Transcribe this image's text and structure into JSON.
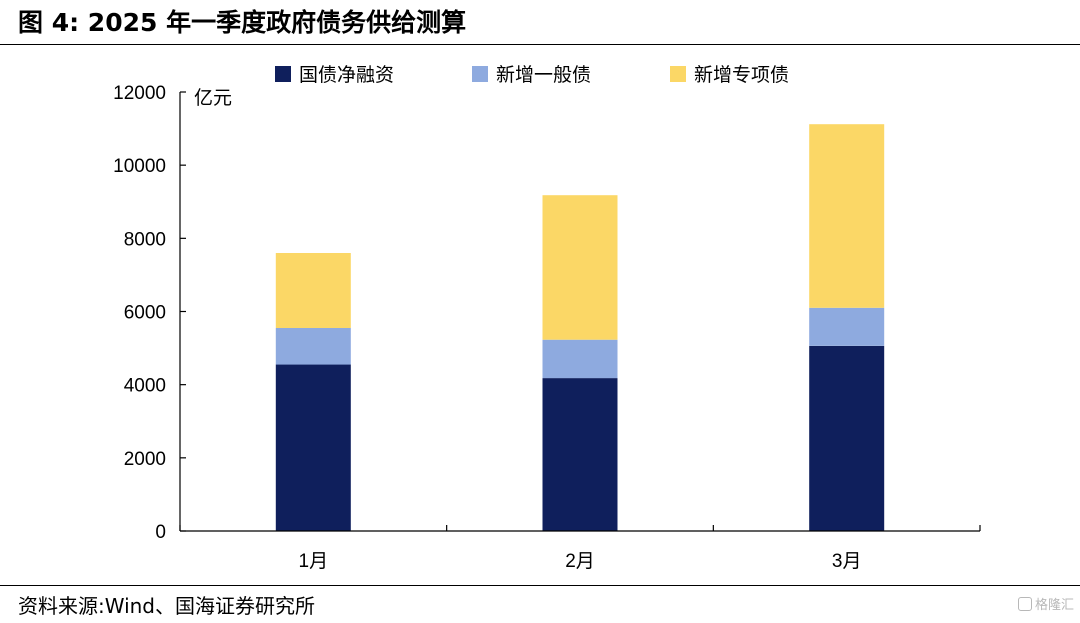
{
  "figure": {
    "title": "图 4: 2025 年一季度政府债务供给测算",
    "source": "资料来源:Wind、国海证券研究所",
    "watermark": "格隆汇"
  },
  "chart_data": {
    "type": "bar",
    "stacked": true,
    "categories": [
      "1月",
      "2月",
      "3月"
    ],
    "series": [
      {
        "name": "国债净融资",
        "color": "#0f1f5c",
        "values": [
          4550,
          4180,
          5060
        ]
      },
      {
        "name": "新增一般债",
        "color": "#8eaadf",
        "values": [
          1000,
          1050,
          1040
        ]
      },
      {
        "name": "新增专项债",
        "color": "#fbd766",
        "values": [
          2050,
          3950,
          5020
        ]
      }
    ],
    "ylabel": "亿元",
    "ylim": [
      0,
      12000
    ],
    "yticks": [
      0,
      2000,
      4000,
      6000,
      8000,
      10000,
      12000
    ],
    "grid": false,
    "legend": "top"
  }
}
